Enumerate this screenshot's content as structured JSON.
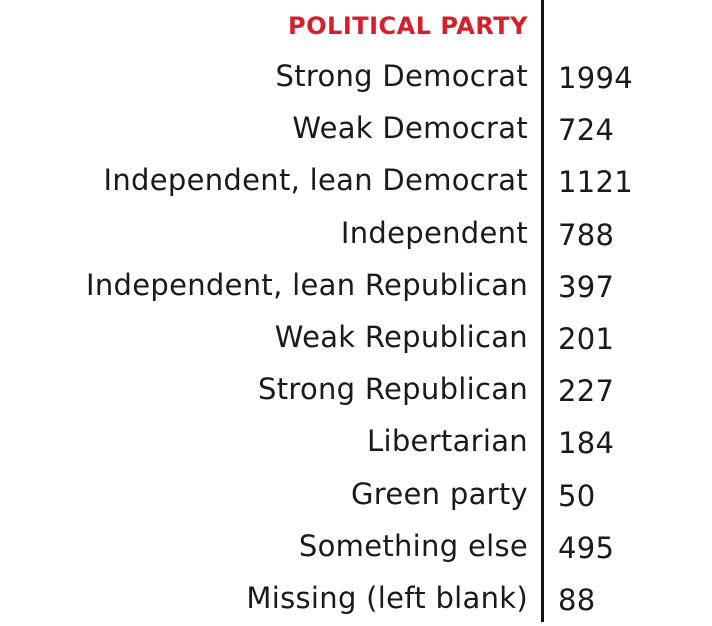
{
  "table": {
    "header": "POLITICAL PARTY",
    "rows": [
      {
        "label": "Strong Democrat",
        "value": "1994"
      },
      {
        "label": "Weak Democrat",
        "value": "724"
      },
      {
        "label": "Independent, lean Democrat",
        "value": "1121"
      },
      {
        "label": "Independent",
        "value": "788"
      },
      {
        "label": "Independent, lean Republican",
        "value": "397"
      },
      {
        "label": "Weak Republican",
        "value": "201"
      },
      {
        "label": "Strong Republican",
        "value": "227"
      },
      {
        "label": "Libertarian",
        "value": "184"
      },
      {
        "label": "Green party",
        "value": "50"
      },
      {
        "label": "Something else",
        "value": "495"
      },
      {
        "label": "Missing (left blank)",
        "value": "88"
      }
    ]
  },
  "colors": {
    "header": "#d61f2a",
    "text": "#1a1a1a",
    "divider": "#111111"
  }
}
